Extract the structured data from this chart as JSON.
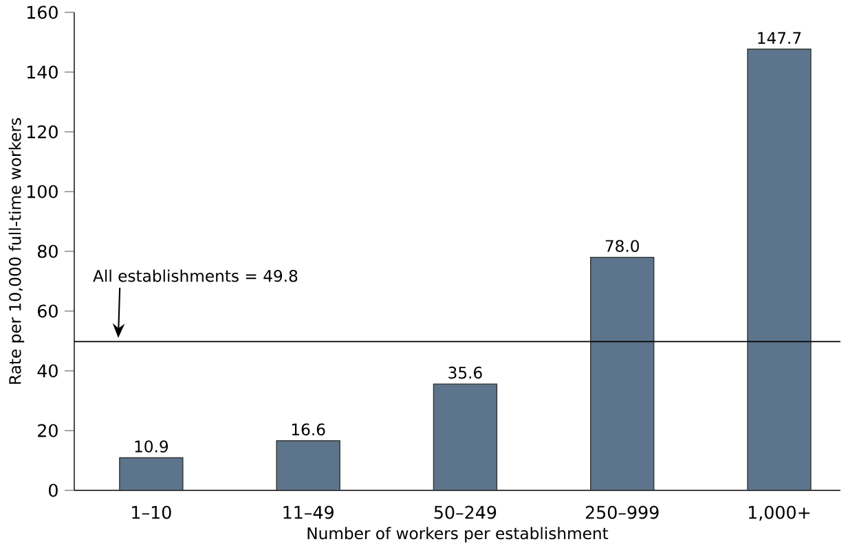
{
  "chart_data": {
    "type": "bar",
    "xlabel": "Number of workers per establishment",
    "ylabel": "Rate per 10,000 full-time workers",
    "categories": [
      "1–10",
      "11–49",
      "50–249",
      "250–999",
      "1,000+"
    ],
    "values": [
      10.9,
      16.6,
      35.6,
      78.0,
      147.7
    ],
    "value_labels": [
      "10.9",
      "16.6",
      "35.6",
      "78.0",
      "147.7"
    ],
    "color": "#5d758c",
    "ylim": [
      0,
      160
    ],
    "yticks": [
      0,
      20,
      40,
      60,
      80,
      100,
      120,
      140,
      160
    ],
    "ref_lines": [
      {
        "axis": "y",
        "value": 49.8,
        "label": "All establishments = 49.8",
        "color": "#000000"
      }
    ],
    "grid": false
  }
}
